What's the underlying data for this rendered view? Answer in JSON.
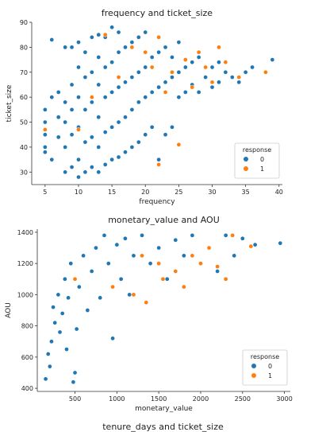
{
  "chart_data": [
    {
      "type": "scatter",
      "title": "frequency and ticket_size",
      "xlabel": "frequency",
      "ylabel": "ticket_size",
      "xlim": [
        3,
        40.5
      ],
      "ylim": [
        25,
        90
      ],
      "xticks": [
        5,
        10,
        15,
        20,
        25,
        30,
        35,
        40
      ],
      "yticks": [
        30,
        40,
        50,
        60,
        70,
        80,
        90
      ],
      "legend": {
        "title": "response",
        "position": "lower-right",
        "labels": [
          "0",
          "1"
        ]
      },
      "series": [
        {
          "name": "0",
          "color": "#1f77b4",
          "points": [
            [
              5,
              40
            ],
            [
              5,
              45
            ],
            [
              5,
              50
            ],
            [
              5,
              55
            ],
            [
              5,
              38
            ],
            [
              6,
              83
            ],
            [
              6,
              60
            ],
            [
              6,
              35
            ],
            [
              7,
              62
            ],
            [
              7,
              52
            ],
            [
              7,
              44
            ],
            [
              8,
              30
            ],
            [
              8,
              40
            ],
            [
              8,
              50
            ],
            [
              8,
              58
            ],
            [
              8,
              80
            ],
            [
              9,
              32
            ],
            [
              9,
              45
            ],
            [
              9,
              55
            ],
            [
              9,
              65
            ],
            [
              9,
              80
            ],
            [
              10,
              28
            ],
            [
              10,
              35
            ],
            [
              10,
              48
            ],
            [
              10,
              60
            ],
            [
              10,
              72
            ],
            [
              10,
              82
            ],
            [
              11,
              30
            ],
            [
              11,
              42
            ],
            [
              11,
              55
            ],
            [
              11,
              68
            ],
            [
              11,
              78
            ],
            [
              12,
              32
            ],
            [
              12,
              44
            ],
            [
              12,
              58
            ],
            [
              12,
              70
            ],
            [
              12,
              84
            ],
            [
              13,
              30
            ],
            [
              13,
              40
            ],
            [
              13,
              52
            ],
            [
              13,
              65
            ],
            [
              13,
              76
            ],
            [
              13,
              85
            ],
            [
              14,
              33
            ],
            [
              14,
              46
            ],
            [
              14,
              60
            ],
            [
              14,
              72
            ],
            [
              14,
              84
            ],
            [
              15,
              35
            ],
            [
              15,
              48
            ],
            [
              15,
              62
            ],
            [
              15,
              74
            ],
            [
              15,
              88
            ],
            [
              16,
              36
            ],
            [
              16,
              50
            ],
            [
              16,
              64
            ],
            [
              16,
              78
            ],
            [
              16,
              86
            ],
            [
              17,
              38
            ],
            [
              17,
              52
            ],
            [
              17,
              66
            ],
            [
              17,
              80
            ],
            [
              18,
              40
            ],
            [
              18,
              55
            ],
            [
              18,
              68
            ],
            [
              18,
              82
            ],
            [
              19,
              42
            ],
            [
              19,
              58
            ],
            [
              19,
              70
            ],
            [
              19,
              84
            ],
            [
              20,
              45
            ],
            [
              20,
              60
            ],
            [
              20,
              72
            ],
            [
              20,
              86
            ],
            [
              21,
              48
            ],
            [
              21,
              62
            ],
            [
              21,
              76
            ],
            [
              22,
              35
            ],
            [
              22,
              64
            ],
            [
              22,
              78
            ],
            [
              23,
              45
            ],
            [
              23,
              66
            ],
            [
              23,
              80
            ],
            [
              24,
              48
            ],
            [
              24,
              68
            ],
            [
              24,
              76
            ],
            [
              25,
              60
            ],
            [
              25,
              70
            ],
            [
              25,
              82
            ],
            [
              26,
              62
            ],
            [
              26,
              72
            ],
            [
              27,
              65
            ],
            [
              27,
              74
            ],
            [
              28,
              62
            ],
            [
              28,
              76
            ],
            [
              29,
              68
            ],
            [
              30,
              64
            ],
            [
              30,
              72
            ],
            [
              31,
              66
            ],
            [
              31,
              74
            ],
            [
              32,
              70
            ],
            [
              33,
              68
            ],
            [
              34,
              66
            ],
            [
              35,
              70
            ],
            [
              36,
              72
            ],
            [
              39,
              75
            ]
          ]
        },
        {
          "name": "1",
          "color": "#ff7f0e",
          "points": [
            [
              5,
              47
            ],
            [
              10,
              47
            ],
            [
              12,
              60
            ],
            [
              14,
              85
            ],
            [
              16,
              68
            ],
            [
              18,
              80
            ],
            [
              20,
              78
            ],
            [
              21,
              72
            ],
            [
              22,
              84
            ],
            [
              22,
              33
            ],
            [
              23,
              62
            ],
            [
              24,
              70
            ],
            [
              25,
              41
            ],
            [
              26,
              75
            ],
            [
              27,
              64
            ],
            [
              28,
              78
            ],
            [
              29,
              72
            ],
            [
              30,
              66
            ],
            [
              31,
              80
            ],
            [
              32,
              74
            ],
            [
              34,
              68
            ],
            [
              38,
              70
            ]
          ]
        }
      ]
    },
    {
      "type": "scatter",
      "title": "monetary_value and AOU",
      "xlabel": "monetary_value",
      "ylabel": "AOU",
      "xlim": [
        50,
        3070
      ],
      "ylim": [
        380,
        1420
      ],
      "xticks": [
        500,
        1000,
        1500,
        2000,
        2500,
        3000
      ],
      "yticks": [
        400,
        600,
        800,
        1000,
        1200,
        1400
      ],
      "legend": {
        "title": "response",
        "position": "lower-right",
        "labels": [
          "0",
          "1"
        ]
      },
      "series": [
        {
          "name": "0",
          "color": "#1f77b4",
          "points": [
            [
              150,
              460
            ],
            [
              180,
              620
            ],
            [
              200,
              540
            ],
            [
              220,
              700
            ],
            [
              240,
              920
            ],
            [
              260,
              820
            ],
            [
              300,
              1000
            ],
            [
              320,
              760
            ],
            [
              350,
              880
            ],
            [
              380,
              1100
            ],
            [
              400,
              650
            ],
            [
              420,
              980
            ],
            [
              450,
              1200
            ],
            [
              480,
              440
            ],
            [
              500,
              500
            ],
            [
              520,
              780
            ],
            [
              550,
              1050
            ],
            [
              600,
              1250
            ],
            [
              650,
              900
            ],
            [
              700,
              1150
            ],
            [
              750,
              1300
            ],
            [
              800,
              980
            ],
            [
              850,
              1380
            ],
            [
              900,
              1200
            ],
            [
              950,
              720
            ],
            [
              1000,
              1320
            ],
            [
              1050,
              1100
            ],
            [
              1100,
              1360
            ],
            [
              1150,
              1000
            ],
            [
              1200,
              1250
            ],
            [
              1300,
              1380
            ],
            [
              1400,
              1200
            ],
            [
              1500,
              1300
            ],
            [
              1600,
              1100
            ],
            [
              1700,
              1350
            ],
            [
              1800,
              1250
            ],
            [
              1900,
              1380
            ],
            [
              2000,
              1200
            ],
            [
              2100,
              1300
            ],
            [
              2200,
              1150
            ],
            [
              2300,
              1380
            ],
            [
              2400,
              1250
            ],
            [
              2500,
              1360
            ],
            [
              2650,
              1320
            ],
            [
              2950,
              1330
            ]
          ]
        },
        {
          "name": "1",
          "color": "#ff7f0e",
          "points": [
            [
              500,
              1100
            ],
            [
              950,
              1050
            ],
            [
              1200,
              1000
            ],
            [
              1300,
              1250
            ],
            [
              1350,
              950
            ],
            [
              1500,
              1200
            ],
            [
              1550,
              1100
            ],
            [
              1700,
              1150
            ],
            [
              1800,
              1050
            ],
            [
              1900,
              1250
            ],
            [
              2000,
              1200
            ],
            [
              2100,
              1300
            ],
            [
              2200,
              1180
            ],
            [
              2300,
              1100
            ],
            [
              2380,
              1380
            ],
            [
              2600,
              1310
            ]
          ]
        }
      ]
    }
  ],
  "next_chart_title_partial": "tenure_days and ticket_size"
}
